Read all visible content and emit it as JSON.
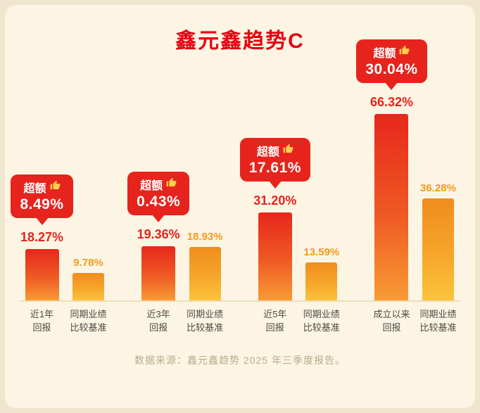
{
  "title": "鑫元鑫趋势C",
  "footer": "数据来源：鑫元鑫趋势 2025 年三季度报告。",
  "badge": {
    "label": "超额",
    "icon": "thumbs-up-icon"
  },
  "colors": {
    "background": "#f0e6cf",
    "card": "#fcf5e4",
    "title": "#e60012",
    "badge_bg": "#e7231d",
    "return_value_text": "#e7231d",
    "benchmark_value_text": "#f49a1c",
    "bar_red_top": "#e7271c",
    "bar_red_bottom": "#f89b35",
    "bar_orange_top": "#f08c1d",
    "bar_orange_bottom": "#fbc33b",
    "axis_label": "#4d4942",
    "baseline": "#ecdcba",
    "footer": "#b9aa8d"
  },
  "chart_data": {
    "type": "bar",
    "title": "鑫元鑫趋势C",
    "categories": [
      "近1年",
      "近3年",
      "近5年",
      "成立以来"
    ],
    "series": [
      {
        "name": "回报",
        "values": [
          18.27,
          19.36,
          31.2,
          66.32
        ]
      },
      {
        "name": "同期业绩比较基准",
        "values": [
          9.78,
          18.93,
          13.59,
          36.28
        ]
      }
    ],
    "excess_label": "超额",
    "excess_values": [
      8.49,
      0.43,
      17.61,
      30.04
    ],
    "unit": "%",
    "ylim": [
      0,
      70
    ],
    "legend_position": "none",
    "grid": false,
    "groups": [
      {
        "excess": "8.49%",
        "return": "18.27%",
        "return_value": 18.27,
        "benchmark": "9.78%",
        "benchmark_value": 9.78,
        "return_axis": [
          "近1年",
          "回报"
        ],
        "benchmark_axis": [
          "同期业绩",
          "比较基准"
        ]
      },
      {
        "excess": "0.43%",
        "return": "19.36%",
        "return_value": 19.36,
        "benchmark": "18.93%",
        "benchmark_value": 18.93,
        "return_axis": [
          "近3年",
          "回报"
        ],
        "benchmark_axis": [
          "同期业绩",
          "比较基准"
        ]
      },
      {
        "excess": "17.61%",
        "return": "31.20%",
        "return_value": 31.2,
        "benchmark": "13.59%",
        "benchmark_value": 13.59,
        "return_axis": [
          "近5年",
          "回报"
        ],
        "benchmark_axis": [
          "同期业绩",
          "比较基准"
        ]
      },
      {
        "excess": "30.04%",
        "return": "66.32%",
        "return_value": 66.32,
        "benchmark": "36.28%",
        "benchmark_value": 36.28,
        "return_axis": [
          "成立以来",
          "回报"
        ],
        "benchmark_axis": [
          "同期业绩",
          "比较基准"
        ]
      }
    ]
  }
}
